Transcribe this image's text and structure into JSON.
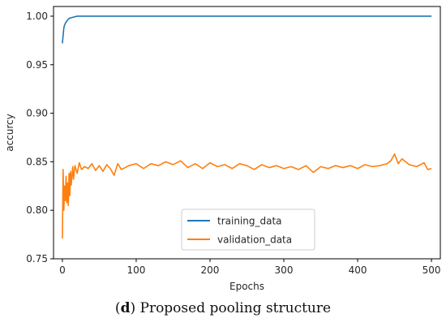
{
  "caption": {
    "letter": "d",
    "text": "Proposed pooling structure"
  },
  "chart_data": {
    "type": "line",
    "title": "",
    "xlabel": "Epochs",
    "ylabel": "accurcy",
    "xlim": [
      -12,
      512
    ],
    "ylim": [
      0.75,
      1.01
    ],
    "xticks": [
      0,
      100,
      200,
      300,
      400,
      500
    ],
    "yticks": [
      0.75,
      0.8,
      0.85,
      0.9,
      0.95,
      1.0
    ],
    "ytick_labels": [
      "0.75",
      "0.80",
      "0.85",
      "0.90",
      "0.95",
      "1.00"
    ],
    "grid": false,
    "legend_position": "lower-center",
    "series": [
      {
        "name": "training_data",
        "color": "#1f77b4",
        "x": [
          0,
          1,
          2,
          3,
          5,
          8,
          10,
          15,
          20,
          25,
          30,
          50,
          100,
          200,
          300,
          400,
          500
        ],
        "y": [
          0.972,
          0.98,
          0.988,
          0.991,
          0.994,
          0.997,
          0.998,
          0.999,
          1.0,
          1.0,
          1.0,
          1.0,
          1.0,
          1.0,
          1.0,
          1.0,
          1.0
        ]
      },
      {
        "name": "validation_data",
        "color": "#ff7f0e",
        "x": [
          0,
          1,
          2,
          3,
          4,
          5,
          6,
          7,
          8,
          9,
          10,
          11,
          12,
          13,
          14,
          15,
          17,
          20,
          23,
          26,
          30,
          35,
          40,
          45,
          50,
          55,
          60,
          65,
          70,
          75,
          80,
          90,
          100,
          110,
          120,
          130,
          140,
          150,
          160,
          170,
          180,
          190,
          200,
          210,
          220,
          230,
          240,
          250,
          260,
          270,
          280,
          290,
          300,
          310,
          320,
          330,
          340,
          350,
          360,
          370,
          380,
          390,
          400,
          410,
          420,
          430,
          440,
          445,
          450,
          455,
          460,
          470,
          480,
          490,
          495,
          500
        ],
        "y": [
          0.771,
          0.842,
          0.8,
          0.825,
          0.81,
          0.835,
          0.808,
          0.828,
          0.805,
          0.838,
          0.815,
          0.84,
          0.826,
          0.836,
          0.845,
          0.832,
          0.846,
          0.838,
          0.849,
          0.842,
          0.845,
          0.843,
          0.848,
          0.841,
          0.846,
          0.84,
          0.847,
          0.843,
          0.836,
          0.848,
          0.842,
          0.846,
          0.848,
          0.843,
          0.848,
          0.846,
          0.85,
          0.847,
          0.851,
          0.844,
          0.848,
          0.843,
          0.849,
          0.845,
          0.847,
          0.843,
          0.848,
          0.846,
          0.842,
          0.847,
          0.844,
          0.846,
          0.843,
          0.845,
          0.842,
          0.846,
          0.839,
          0.845,
          0.843,
          0.846,
          0.844,
          0.846,
          0.843,
          0.847,
          0.845,
          0.846,
          0.848,
          0.851,
          0.858,
          0.848,
          0.853,
          0.847,
          0.845,
          0.849,
          0.842,
          0.843
        ]
      }
    ]
  }
}
